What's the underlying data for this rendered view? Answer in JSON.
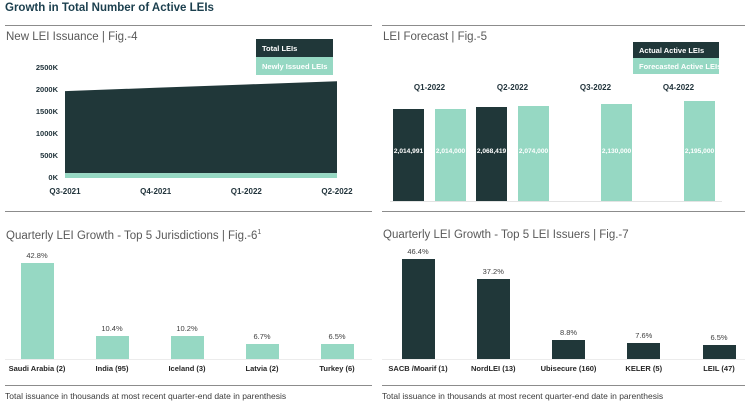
{
  "page": {
    "title": "Growth in Total Number of Active LEIs"
  },
  "colors": {
    "dark": "#203739",
    "mint": "#96d8c3",
    "title": "#1b3f4e"
  },
  "footnotes": {
    "left": "Total issuance in thousands at most recent quarter-end date in parenthesis",
    "right": "Total issuance in thousands at most recent quarter-end date in parenthesis"
  },
  "chart_data": [
    {
      "id": "fig4",
      "type": "area",
      "title": "New LEI Issuance | Fig.-4",
      "legend": [
        "Total LEIs",
        "Newly Issued LEIs"
      ],
      "legend_position": "top-right",
      "categories": [
        "Q3-2021",
        "Q4-2021",
        "Q1-2022",
        "Q2-2022"
      ],
      "series": [
        {
          "name": "Total LEIs",
          "color": "dark",
          "values": [
            1975000,
            2050000,
            2125000,
            2200000
          ]
        },
        {
          "name": "Newly Issued LEIs",
          "color": "mint",
          "values": [
            110000,
            110000,
            110000,
            110000
          ]
        }
      ],
      "yticks": [
        "0K",
        "500K",
        "1000K",
        "1500K",
        "2000K",
        "2500K"
      ],
      "ylim": [
        0,
        2500000
      ],
      "grid": false
    },
    {
      "id": "fig5",
      "type": "bar",
      "title": "LEI Forecast | Fig.-5",
      "legend": [
        "Actual Active LEIs",
        "Forecasted Active LEIs"
      ],
      "legend_position": "top-right",
      "categories": [
        "Q1-2022",
        "Q2-2022",
        "Q3-2022",
        "Q4-2022"
      ],
      "series": [
        {
          "name": "Actual Active LEIs",
          "color": "dark",
          "values": [
            2014991,
            2068419,
            null,
            null
          ],
          "labels": [
            "2,014,991",
            "2,068,419",
            null,
            null
          ]
        },
        {
          "name": "Forecasted Active LEIs",
          "color": "mint",
          "values": [
            2014000,
            2074000,
            2130000,
            2195000
          ],
          "labels": [
            "2,014,000",
            "2,074,000",
            "2,130,000",
            "2,195,000"
          ]
        }
      ],
      "grid": false
    },
    {
      "id": "fig6",
      "type": "bar",
      "title": "Quarterly LEI Growth - Top 5 Jurisdictions | Fig.-6",
      "title_superscript": "1",
      "categories": [
        "Saudi Arabia (2)",
        "India (95)",
        "Iceland (3)",
        "Latvia (2)",
        "Turkey (6)"
      ],
      "values": [
        42.8,
        10.4,
        10.2,
        6.7,
        6.5
      ],
      "labels": [
        "42.8%",
        "10.4%",
        "10.2%",
        "6.7%",
        "6.5%"
      ],
      "bar_color": "mint",
      "grid": false
    },
    {
      "id": "fig7",
      "type": "bar",
      "title": "Quarterly LEI Growth - Top 5 LEI Issuers | Fig.-7",
      "categories": [
        "SACB /Moarif (1)",
        "NordLEI (13)",
        "Ubisecure (160)",
        "KELER (5)",
        "LEIL (47)"
      ],
      "values": [
        46.4,
        37.2,
        8.8,
        7.6,
        6.5
      ],
      "labels": [
        "46.4%",
        "37.2%",
        "8.8%",
        "7.6%",
        "6.5%"
      ],
      "bar_color": "dark",
      "grid": false
    }
  ]
}
